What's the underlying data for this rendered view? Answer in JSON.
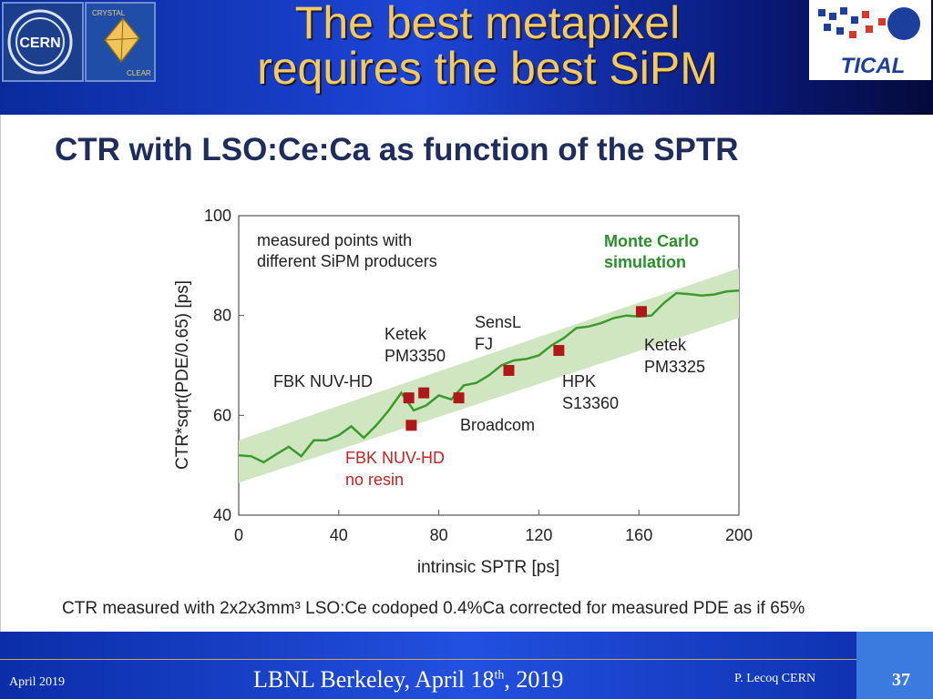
{
  "slide": {
    "title_line1": "The best metapixel",
    "title_line2": "requires the best SiPM",
    "logos": {
      "cern": "CERN",
      "crystal_top": "CRYSTAL",
      "crystal_bottom": "CLEAR",
      "tical": "TICAL"
    },
    "caption": "CTR measured with 2x2x3mm³ LSO:Ce codoped 0.4%Ca corrected for measured PDE as if 65%",
    "footer": {
      "date": "April 2019",
      "venue_prefix": "LBNL Berkeley, April 18",
      "venue_sup": "th",
      "venue_suffix": ", 2019",
      "author": "P. Lecoq  CERN",
      "page": "37"
    }
  },
  "colors": {
    "title": "#f4c95d",
    "chart_title": "#1e2d5c",
    "line": "#3a9b2c",
    "band": "#cfe6c0",
    "marker": "#b01818",
    "red_label": "#c22424",
    "green_label": "#2a8f2a"
  },
  "chart_data": {
    "type": "scatter",
    "title": "CTR with LSO:Ce:Ca as function of the SPTR",
    "xlabel": "intrinsic SPTR [ps]",
    "ylabel": "CTR*sqrt(PDE/0.65) [ps]",
    "xlim": [
      0,
      200
    ],
    "ylim": [
      40,
      100
    ],
    "xticks": [
      0,
      40,
      80,
      120,
      160,
      200
    ],
    "yticks": [
      40,
      60,
      80,
      100
    ],
    "annotations": {
      "measured": [
        "measured points with",
        "different SiPM producers"
      ],
      "monte_carlo": [
        "Monte Carlo",
        "simulation"
      ]
    },
    "simulation_line": {
      "name": "Monte Carlo simulation",
      "x": [
        0,
        5,
        10,
        15,
        20,
        25,
        30,
        35,
        40,
        45,
        50,
        55,
        60,
        65,
        70,
        75,
        80,
        85,
        90,
        95,
        100,
        105,
        110,
        115,
        120,
        125,
        130,
        135,
        140,
        145,
        150,
        155,
        160,
        165,
        170,
        175,
        180,
        185,
        190,
        195,
        200
      ],
      "y": [
        52,
        51.8,
        50.6,
        52.2,
        53.7,
        51.8,
        55,
        55,
        56,
        57.8,
        55.5,
        58,
        61,
        64.5,
        61,
        62,
        64,
        63.2,
        66,
        66.5,
        68,
        70,
        71,
        71.3,
        72,
        74,
        75.5,
        77.5,
        77.8,
        78.5,
        79.5,
        80,
        79.8,
        80,
        82.5,
        84.5,
        84.3,
        84,
        84.2,
        84.8,
        85
      ]
    },
    "simulation_band": {
      "lower": [
        [
          0,
          46.5
        ],
        [
          200,
          79.5
        ]
      ],
      "upper": [
        [
          0,
          55
        ],
        [
          200,
          89.5
        ]
      ]
    },
    "measured_points": [
      {
        "label": "FBK NUV-HD",
        "x": 68,
        "y": 63.5
      },
      {
        "label": "FBK NUV-HD no resin",
        "x": 69,
        "y": 58
      },
      {
        "label": "Ketek PM3350",
        "x": 74,
        "y": 64.5
      },
      {
        "label": "Broadcom",
        "x": 88,
        "y": 63.5
      },
      {
        "label": "SensL FJ",
        "x": 108,
        "y": 69
      },
      {
        "label": "HPK S13360",
        "x": 128,
        "y": 73
      },
      {
        "label": "Ketek PM3325",
        "x": 161,
        "y": 80.8
      }
    ],
    "point_labels": {
      "fbk": [
        "FBK NUV-HD"
      ],
      "fbk_noresin": [
        "FBK NUV-HD",
        "no resin"
      ],
      "ketek3350": [
        "Ketek",
        "PM3350"
      ],
      "broadcom": [
        "Broadcom"
      ],
      "sensl": [
        "SensL",
        "FJ"
      ],
      "hpk": [
        "HPK",
        "S13360"
      ],
      "ketek3325": [
        "Ketek",
        "PM3325"
      ]
    }
  }
}
